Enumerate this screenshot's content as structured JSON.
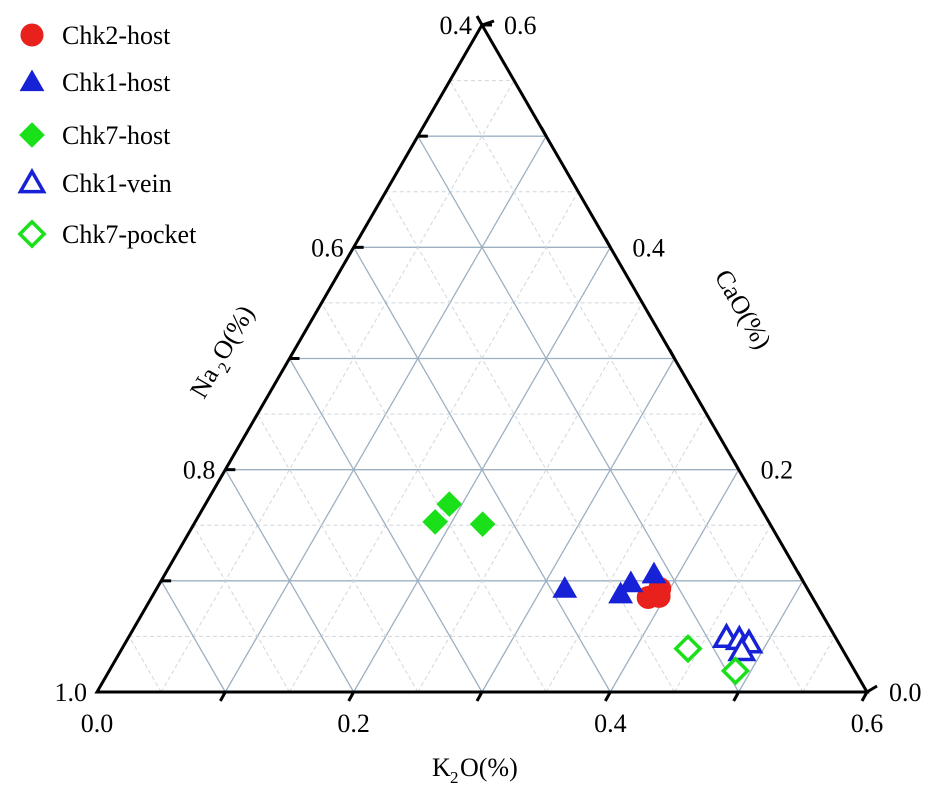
{
  "chart_data": {
    "type": "scatter",
    "subtype": "ternary",
    "axes": {
      "bottom": {
        "label_main": "K",
        "label_sub": "2",
        "label_rest": "O(%)",
        "range": [
          0.0,
          0.6
        ],
        "tick_labels": [
          "0.0",
          "0.2",
          "0.4",
          "0.6"
        ]
      },
      "left": {
        "label_main": "Na",
        "label_sub": "2",
        "label_rest": "O(%)",
        "range": [
          0.4,
          1.0
        ],
        "tick_labels": [
          "1.0",
          "0.8",
          "0.6",
          "0.4"
        ]
      },
      "right": {
        "label": "CaO(%)",
        "range": [
          0.0,
          0.6
        ],
        "tick_labels": [
          "0.0",
          "0.2",
          "0.4",
          "0.6"
        ]
      }
    },
    "grid": true,
    "legend_position": "top-left",
    "series": [
      {
        "name": "Chk2-host",
        "marker": "circle",
        "filled": true,
        "color": "#e8211d",
        "points": [
          {
            "k2o": 0.392,
            "cao": 0.093
          },
          {
            "k2o": 0.387,
            "cao": 0.085
          },
          {
            "k2o": 0.395,
            "cao": 0.086
          }
        ]
      },
      {
        "name": "Chk1-host",
        "marker": "triangle",
        "filled": true,
        "color": "#1721d6",
        "points": [
          {
            "k2o": 0.318,
            "cao": 0.093
          },
          {
            "k2o": 0.367,
            "cao": 0.098
          },
          {
            "k2o": 0.364,
            "cao": 0.088
          },
          {
            "k2o": 0.381,
            "cao": 0.106
          }
        ]
      },
      {
        "name": "Chk7-host",
        "marker": "diamond",
        "filled": true,
        "color": "#19e019",
        "points": [
          {
            "k2o": 0.19,
            "cao": 0.169
          },
          {
            "k2o": 0.187,
            "cao": 0.153
          },
          {
            "k2o": 0.225,
            "cao": 0.151
          }
        ]
      },
      {
        "name": "Chk1-vein",
        "marker": "triangle",
        "filled": false,
        "color": "#1721d6",
        "points": [
          {
            "k2o": 0.466,
            "cao": 0.049
          },
          {
            "k2o": 0.477,
            "cao": 0.047
          },
          {
            "k2o": 0.486,
            "cao": 0.044
          },
          {
            "k2o": 0.484,
            "cao": 0.037
          }
        ]
      },
      {
        "name": "Chk7-pocket",
        "marker": "diamond",
        "filled": false,
        "color": "#19e019",
        "points": [
          {
            "k2o": 0.441,
            "cao": 0.039
          },
          {
            "k2o": 0.488,
            "cao": 0.019
          }
        ]
      }
    ]
  }
}
